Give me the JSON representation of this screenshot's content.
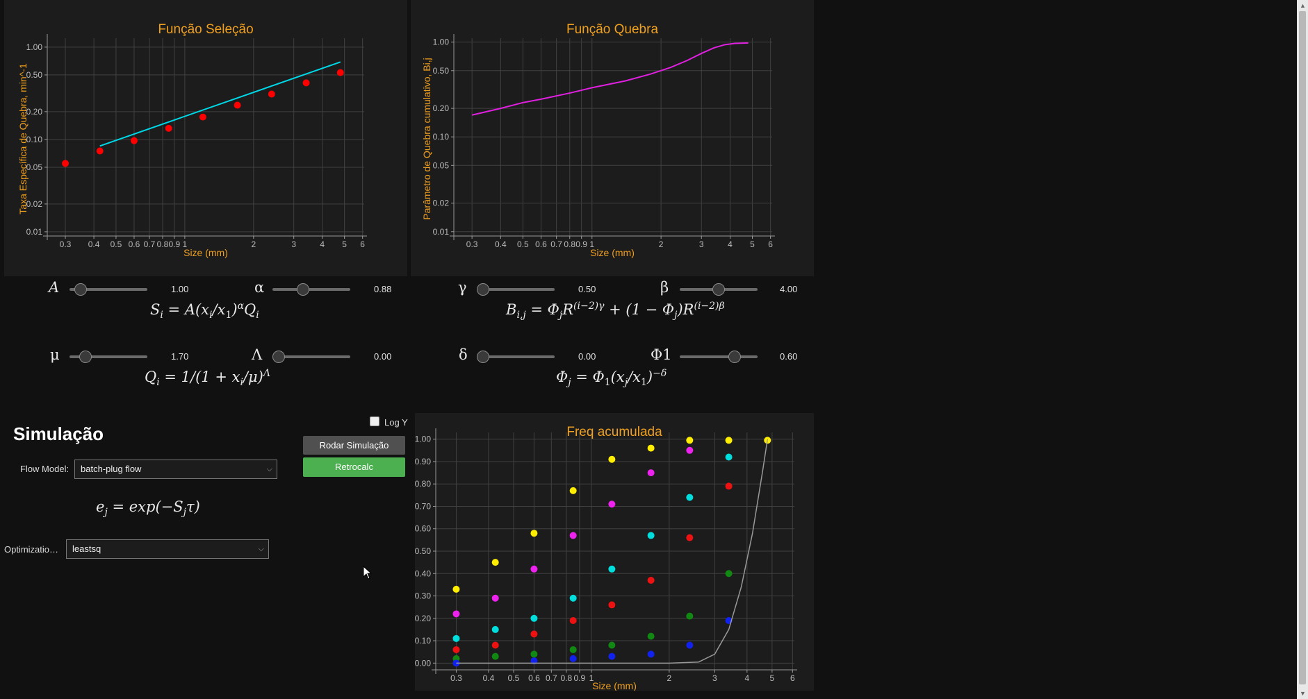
{
  "selection_chart": {
    "title": "Função Seleção",
    "xlabel": "Size (mm)",
    "ylabel": "Taxa Específica de Quebra, min^-1"
  },
  "breakage_chart": {
    "title": "Função Quebra",
    "xlabel": "Size (mm)",
    "ylabel": "Parâmetro de Quebra cumulativo, Bi,j"
  },
  "cumulative_chart": {
    "title": "Freq acumulada",
    "xlabel": "Size (mm)"
  },
  "controls": {
    "A": {
      "symbol": "A",
      "value": "1.00",
      "level": 0.13
    },
    "alpha": {
      "symbol": "α",
      "value": "0.88",
      "level": 0.38
    },
    "gamma": {
      "symbol": "γ",
      "value": "0.50",
      "level": 0.0
    },
    "beta": {
      "symbol": "β",
      "value": "4.00",
      "level": 0.49
    },
    "mu": {
      "symbol": "μ",
      "value": "1.70",
      "level": 0.2
    },
    "Lambda": {
      "symbol": "Λ",
      "value": "0.00",
      "level": 0.0
    },
    "delta": {
      "symbol": "δ",
      "value": "0.00",
      "level": 0.0
    },
    "Phi1": {
      "symbol": "Φ1",
      "value": "0.60",
      "level": 0.7
    }
  },
  "formulas": {
    "selection": "S_i = A(x_i/x_1)^α Q_i",
    "breakage": "B_i,j = Φ_j R^(i−2)γ + (1 − Φ_j) R^(i−2)β",
    "q": "Q_i = 1/(1 + x_i/μ)^Λ",
    "phi": "Φ_j = Φ_1(x_j/x_1)^−δ",
    "plug": "e_j = exp(−S_j τ)"
  },
  "simulation": {
    "heading": "Simulação",
    "flow_label": "Flow Model:",
    "flow_value": "batch-plug flow",
    "opt_label": "Optimizatio…",
    "opt_value": "leastsq",
    "logy_label": "Log Y",
    "run_label": "Rodar Simulação",
    "retro_label": "Retrocalc"
  },
  "colors": {
    "accent": "#f0a020",
    "run_button": "#505050",
    "retro_button": "#4caf50"
  },
  "chart_data": [
    {
      "type": "scatter",
      "title": "Função Seleção",
      "xlabel": "Size (mm)",
      "ylabel": "Taxa Específica de Quebra, min^-1",
      "xscale": "log",
      "yscale": "log",
      "xlim": [
        0.25,
        6.1
      ],
      "ylim": [
        0.009,
        1.25
      ],
      "x_ticks": [
        "0.3",
        "0.4",
        "0.5",
        "0.6",
        "0.7",
        "0.8",
        "0.9",
        "1",
        "2",
        "3",
        "4",
        "5",
        "6"
      ],
      "y_ticks": [
        "0.01",
        "0.02",
        "0.05",
        "0.10",
        "0.20",
        "0.50",
        "1.00"
      ],
      "series": [
        {
          "kind": "points",
          "color": "#ff0000",
          "x": [
            0.3,
            0.425,
            0.6,
            0.85,
            1.2,
            1.7,
            2.4,
            3.4,
            4.8
          ],
          "y": [
            0.055,
            0.075,
            0.097,
            0.132,
            0.175,
            0.235,
            0.31,
            0.41,
            0.53
          ]
        },
        {
          "kind": "line",
          "color": "#00d8e8",
          "x": [
            0.425,
            4.8
          ],
          "y": [
            0.085,
            0.69
          ]
        }
      ]
    },
    {
      "type": "line",
      "title": "Função Quebra",
      "xlabel": "Size (mm)",
      "ylabel": "Parâmetro de Quebra cumulativo, Bi,j",
      "xscale": "log",
      "yscale": "log",
      "xlim": [
        0.25,
        6.1
      ],
      "ylim": [
        0.009,
        1.1
      ],
      "x_ticks": [
        "0.3",
        "0.4",
        "0.5",
        "0.6",
        "0.7",
        "0.8",
        "0.9",
        "1",
        "2",
        "3",
        "4",
        "5",
        "6"
      ],
      "y_ticks": [
        "0.01",
        "0.02",
        "0.05",
        "0.10",
        "0.20",
        "0.50",
        "1.00"
      ],
      "series": [
        {
          "kind": "line",
          "color": "#e020e0",
          "x": [
            0.3,
            0.4,
            0.5,
            0.6,
            0.8,
            1.0,
            1.4,
            1.8,
            2.2,
            2.6,
            3.0,
            3.4,
            3.8,
            4.2,
            4.8
          ],
          "y": [
            0.17,
            0.2,
            0.23,
            0.25,
            0.29,
            0.33,
            0.39,
            0.46,
            0.54,
            0.64,
            0.76,
            0.87,
            0.94,
            0.97,
            0.98
          ]
        }
      ]
    },
    {
      "type": "scatter",
      "title": "Freq acumulada",
      "xlabel": "Size (mm)",
      "xscale": "log",
      "xlim": [
        0.25,
        6.1
      ],
      "ylim": [
        -0.03,
        1.03
      ],
      "x_ticks": [
        "0.3",
        "0.4",
        "0.5",
        "0.6",
        "0.7",
        "0.8",
        "0.9",
        "1",
        "2",
        "3",
        "4",
        "5",
        "6"
      ],
      "y_ticks": [
        "0.00",
        "0.10",
        "0.20",
        "0.30",
        "0.40",
        "0.50",
        "0.60",
        "0.70",
        "0.80",
        "0.90",
        "1.00"
      ],
      "categories_x": [
        0.3,
        0.425,
        0.6,
        0.85,
        1.2,
        1.7,
        2.4,
        3.4,
        4.8
      ],
      "series": [
        {
          "color": "#ffee00",
          "x": [
            0.3,
            0.425,
            0.6,
            0.85,
            1.2,
            1.7,
            2.4,
            3.4,
            4.8
          ],
          "y": [
            0.33,
            0.45,
            0.58,
            0.77,
            0.91,
            0.96,
            0.995,
            0.995,
            0.995
          ]
        },
        {
          "color": "#ee22ee",
          "x": [
            0.3,
            0.425,
            0.6,
            0.85,
            1.2,
            1.7,
            2.4
          ],
          "y": [
            0.22,
            0.29,
            0.42,
            0.57,
            0.71,
            0.85,
            0.95
          ]
        },
        {
          "color": "#00dddd",
          "x": [
            0.3,
            0.425,
            0.6,
            0.85,
            1.2,
            1.7,
            2.4,
            3.4
          ],
          "y": [
            0.11,
            0.15,
            0.2,
            0.29,
            0.42,
            0.57,
            0.74,
            0.92
          ]
        },
        {
          "color": "#ee1111",
          "x": [
            0.3,
            0.425,
            0.6,
            0.85,
            1.2,
            1.7,
            2.4,
            3.4
          ],
          "y": [
            0.06,
            0.08,
            0.13,
            0.19,
            0.26,
            0.37,
            0.56,
            0.79
          ]
        },
        {
          "color": "#118811",
          "x": [
            0.3,
            0.425,
            0.6,
            0.85,
            1.2,
            1.7,
            2.4,
            3.4
          ],
          "y": [
            0.02,
            0.03,
            0.04,
            0.06,
            0.08,
            0.12,
            0.21,
            0.4
          ]
        },
        {
          "color": "#1122ee",
          "x": [
            0.3,
            0.6,
            0.85,
            1.2,
            1.7,
            2.4,
            3.4
          ],
          "y": [
            0.0,
            0.01,
            0.02,
            0.03,
            0.04,
            0.08,
            0.19
          ]
        },
        {
          "kind": "line",
          "color": "#999999",
          "x": [
            0.3,
            1.0,
            2.0,
            2.6,
            3.0,
            3.4,
            3.8,
            4.2,
            4.6,
            4.8
          ],
          "y": [
            0.0,
            0.0,
            0.0,
            0.005,
            0.04,
            0.15,
            0.34,
            0.58,
            0.86,
            1.0
          ]
        }
      ]
    }
  ]
}
